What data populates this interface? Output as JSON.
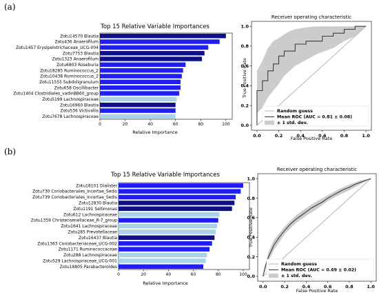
{
  "panels": [
    {
      "label": "(a)"
    },
    {
      "label": "(b)"
    }
  ],
  "colors": {
    "dark": "#10108a",
    "blue": "#1f1ff5",
    "light": "#a9d3ea",
    "band": "#cccccc",
    "diag": "#b3b3b3",
    "roc": "#3c3c3c"
  },
  "chart_data": [
    {
      "type": "bar",
      "orientation": "horizontal",
      "title": "Top 15 Relative Variable Importances",
      "xlabel": "Relative Importance",
      "xlim": [
        0,
        105
      ],
      "xticks": [
        "0",
        "20",
        "40",
        "60",
        "80",
        "100"
      ],
      "categories": [
        "Zotu14570 Blautia",
        "Zotu436 Anaerofilum",
        "Zotu1457 Erysipelotrichaceae_UCG-004",
        "Zotu7753 Blautia",
        "Zotu1323 Anaerofilum",
        "Zotu6803 Roseburia",
        "Zotu18285 Ruminococcus_2",
        "Zotu10438 Ruminococcus_2",
        "Zotu11555 Subdoligranulum",
        "Zotu658 Oscillibacter",
        "Zotu1404 Clostridiales_vadinBB60_group",
        "Zotu5199 Lachnospiraceae",
        "Zotu16960 Blautia",
        "Zotu536 Victivallis",
        "Zotu7678 Lachnospiraceae"
      ],
      "values": [
        100,
        95,
        86,
        83,
        81,
        68,
        66,
        65,
        64,
        64,
        63,
        61,
        60,
        60,
        60
      ],
      "bar_colors": [
        "dark",
        "blue",
        "blue",
        "dark",
        "dark",
        "blue",
        "blue",
        "blue",
        "blue",
        "blue",
        "blue",
        "light",
        "dark",
        "blue",
        "light"
      ]
    },
    {
      "type": "line",
      "title": "Receiver operating characteristic",
      "xlabel": "False Positive Rate",
      "ylabel": "True Positive Rate",
      "xlim": [
        0,
        1
      ],
      "ylim": [
        0,
        1
      ],
      "xticks": [
        "0.0",
        "0.2",
        "0.4",
        "0.6",
        "0.8",
        "1.0"
      ],
      "yticks": [
        "0.0",
        "0.2",
        "0.4",
        "0.6",
        "0.8",
        "1.0"
      ],
      "legend": [
        "Random guess",
        "Mean ROC (AUC = 0.81 ± 0.08)",
        "± 1 std. dev."
      ],
      "legend_position": "lower-right",
      "mean_roc": {
        "x": [
          0,
          0,
          0.05,
          0.05,
          0.1,
          0.1,
          0.15,
          0.15,
          0.2,
          0.2,
          0.25,
          0.25,
          0.35,
          0.35,
          0.45,
          0.45,
          0.6,
          0.6,
          0.7,
          0.7,
          0.8,
          0.8,
          0.9,
          0.9,
          1.0
        ],
        "y": [
          0,
          0.35,
          0.35,
          0.45,
          0.45,
          0.55,
          0.55,
          0.62,
          0.62,
          0.7,
          0.7,
          0.75,
          0.75,
          0.82,
          0.82,
          0.85,
          0.85,
          0.9,
          0.9,
          0.93,
          0.93,
          0.97,
          0.97,
          1.0,
          1.0
        ]
      },
      "std_band": {
        "x": [
          0,
          0.05,
          0.1,
          0.15,
          0.2,
          0.25,
          0.3,
          0.35,
          0.45,
          0.55,
          0.7,
          0.8,
          0.9,
          1.0
        ],
        "upper": [
          0.55,
          0.65,
          0.78,
          0.85,
          0.88,
          0.92,
          0.95,
          0.97,
          0.99,
          1.0,
          1.0,
          1.0,
          1.0,
          1.0
        ],
        "lower": [
          0.12,
          0.18,
          0.28,
          0.35,
          0.42,
          0.5,
          0.55,
          0.6,
          0.66,
          0.72,
          0.78,
          0.85,
          0.9,
          1.0
        ]
      }
    },
    {
      "type": "bar",
      "orientation": "horizontal",
      "title": "Top 15 Relative Variable Importances",
      "xlabel": "Relative Importance",
      "xlim": [
        0,
        105
      ],
      "xticks": [
        "0",
        "20",
        "40",
        "60",
        "80",
        "100"
      ],
      "categories": [
        "Zotu18101 Dialister",
        "Zotu730 Coriobacteriales_Incertae_Sedis",
        "Zotu739 Coriobacteriales_Incertae_Sedis",
        "Zotu12830 Blautia",
        "Zotu1191 Sellimonas",
        "Zotu612 Lachnospiraceae",
        "Zotu1359 Christensenellaceae_R-7_group",
        "Zotu1641 Lachnospiraceae",
        "Zotu285 Prevotellaceae",
        "Zotu16437 Blautia",
        "Zotu1363 Coriobacteriaceae_UCG-002",
        "Zotu1171 Ruminococcaceae",
        "Zotu288 Lachnospiraceae",
        "Zotu529 Lachnospiraceae_UCG-001",
        "Zotu18805 Parabacteroides"
      ],
      "values": [
        100,
        98,
        94,
        93,
        91,
        81,
        80,
        79,
        78,
        77,
        75,
        73,
        71,
        70,
        68
      ],
      "bar_colors": [
        "blue",
        "blue",
        "blue",
        "dark",
        "dark",
        "light",
        "blue",
        "light",
        "light",
        "dark",
        "blue",
        "blue",
        "light",
        "light",
        "blue"
      ]
    },
    {
      "type": "line",
      "title": "Receiver operating characteristic",
      "xlabel": "False Positive Rate",
      "ylabel": "True Positive Rate",
      "xlim": [
        0,
        1
      ],
      "ylim": [
        0,
        1
      ],
      "xticks": [
        "0.0",
        "0.2",
        "0.4",
        "0.6",
        "0.8",
        "1.0"
      ],
      "yticks": [
        "0.0",
        "0.2",
        "0.4",
        "0.6",
        "0.8",
        "1.0"
      ],
      "legend": [
        "Random guess",
        "Mean ROC (AUC = 0.69 ± 0.02)",
        "± 1 std. dev."
      ],
      "legend_position": "lower-right",
      "mean_roc": {
        "x": [
          0,
          0.02,
          0.05,
          0.08,
          0.1,
          0.15,
          0.2,
          0.25,
          0.3,
          0.35,
          0.4,
          0.45,
          0.5,
          0.55,
          0.6,
          0.65,
          0.7,
          0.75,
          0.8,
          0.85,
          0.9,
          0.95,
          1.0
        ],
        "y": [
          0,
          0.1,
          0.2,
          0.27,
          0.32,
          0.4,
          0.47,
          0.53,
          0.58,
          0.62,
          0.66,
          0.7,
          0.73,
          0.76,
          0.8,
          0.83,
          0.86,
          0.89,
          0.91,
          0.94,
          0.96,
          0.98,
          1.0
        ]
      },
      "std_band": {
        "x": [
          0,
          0.05,
          0.1,
          0.2,
          0.3,
          0.4,
          0.5,
          0.6,
          0.7,
          0.8,
          0.9,
          1.0
        ],
        "upper": [
          0.02,
          0.25,
          0.37,
          0.51,
          0.62,
          0.7,
          0.77,
          0.83,
          0.89,
          0.94,
          0.98,
          1.0
        ],
        "lower": [
          0,
          0.15,
          0.27,
          0.43,
          0.54,
          0.62,
          0.69,
          0.77,
          0.83,
          0.88,
          0.94,
          1.0
        ]
      }
    }
  ]
}
